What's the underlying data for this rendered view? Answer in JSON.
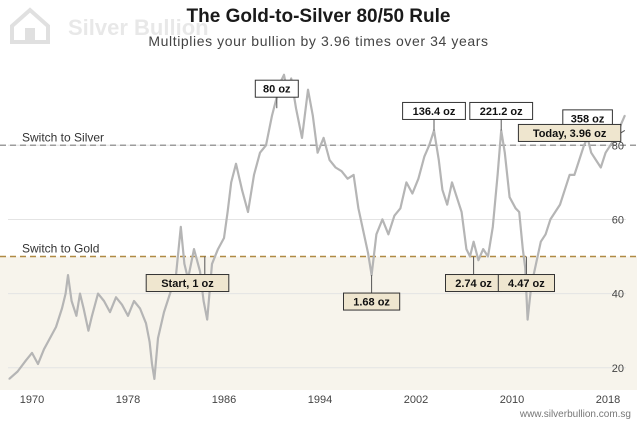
{
  "branding": {
    "logo_text": "Silver Bullion",
    "credit": "www.silverbullion.com.sg"
  },
  "chart_data": {
    "type": "line",
    "title": "The Gold-to-Silver 80/50 Rule",
    "subtitle": "Multiplies your bullion by 3.96 times over 34 years",
    "x_axis": {
      "ticks": [
        "1970",
        "1978",
        "1986",
        "1994",
        "2002",
        "2010",
        "2018"
      ],
      "range": [
        1968,
        2019.5
      ]
    },
    "y_axis": {
      "ticks": [
        "20",
        "40",
        "60",
        "80"
      ],
      "range": [
        14,
        103
      ]
    },
    "reference_lines": [
      {
        "label": "Switch to Silver",
        "value": 80,
        "style": "dashed",
        "color": "#9c9c9c"
      },
      {
        "label": "Switch to Gold",
        "value": 50,
        "style": "dashed",
        "color": "#b08a43"
      }
    ],
    "series": [
      {
        "color": "#b5b5b5",
        "points": [
          [
            1968.1,
            17
          ],
          [
            1968.8,
            19
          ],
          [
            1969.5,
            22
          ],
          [
            1970.0,
            24
          ],
          [
            1970.5,
            21
          ],
          [
            1971.0,
            25
          ],
          [
            1971.5,
            28
          ],
          [
            1972.0,
            31
          ],
          [
            1972.5,
            36
          ],
          [
            1972.8,
            40
          ],
          [
            1973.0,
            45
          ],
          [
            1973.3,
            38
          ],
          [
            1973.7,
            34
          ],
          [
            1974.0,
            40
          ],
          [
            1974.3,
            36
          ],
          [
            1974.7,
            30
          ],
          [
            1975.0,
            34
          ],
          [
            1975.5,
            40
          ],
          [
            1976.0,
            38
          ],
          [
            1976.5,
            35
          ],
          [
            1977.0,
            39
          ],
          [
            1977.5,
            37
          ],
          [
            1978.0,
            34
          ],
          [
            1978.5,
            38
          ],
          [
            1979.0,
            36
          ],
          [
            1979.5,
            32
          ],
          [
            1979.8,
            27
          ],
          [
            1980.0,
            21
          ],
          [
            1980.2,
            17
          ],
          [
            1980.5,
            28
          ],
          [
            1981.0,
            35
          ],
          [
            1981.5,
            40
          ],
          [
            1982.0,
            45
          ],
          [
            1982.4,
            58
          ],
          [
            1982.7,
            48
          ],
          [
            1983.0,
            44
          ],
          [
            1983.5,
            52
          ],
          [
            1984.0,
            46
          ],
          [
            1984.3,
            38
          ],
          [
            1984.6,
            33
          ],
          [
            1985.0,
            48
          ],
          [
            1985.5,
            52
          ],
          [
            1986.0,
            55
          ],
          [
            1986.3,
            62
          ],
          [
            1986.6,
            70
          ],
          [
            1987.0,
            75
          ],
          [
            1987.5,
            68
          ],
          [
            1988.0,
            62
          ],
          [
            1988.5,
            72
          ],
          [
            1989.0,
            78
          ],
          [
            1989.5,
            80
          ],
          [
            1990.0,
            88
          ],
          [
            1990.4,
            93
          ],
          [
            1990.7,
            97
          ],
          [
            1991.0,
            99
          ],
          [
            1991.3,
            94
          ],
          [
            1991.6,
            98
          ],
          [
            1992.0,
            90
          ],
          [
            1992.5,
            82
          ],
          [
            1993.0,
            95
          ],
          [
            1993.4,
            88
          ],
          [
            1993.8,
            78
          ],
          [
            1994.3,
            82
          ],
          [
            1994.8,
            76
          ],
          [
            1995.3,
            74
          ],
          [
            1995.8,
            73
          ],
          [
            1996.3,
            71
          ],
          [
            1996.8,
            72
          ],
          [
            1997.2,
            63
          ],
          [
            1997.6,
            57
          ],
          [
            1998.0,
            51
          ],
          [
            1998.3,
            45
          ],
          [
            1998.7,
            56
          ],
          [
            1999.2,
            60
          ],
          [
            1999.7,
            56
          ],
          [
            2000.2,
            61
          ],
          [
            2000.7,
            63
          ],
          [
            2001.2,
            70
          ],
          [
            2001.7,
            67
          ],
          [
            2002.2,
            71
          ],
          [
            2002.7,
            77
          ],
          [
            2003.1,
            80
          ],
          [
            2003.5,
            84
          ],
          [
            2003.9,
            76
          ],
          [
            2004.2,
            68
          ],
          [
            2004.6,
            64
          ],
          [
            2005.0,
            70
          ],
          [
            2005.4,
            66
          ],
          [
            2005.8,
            62
          ],
          [
            2006.2,
            52
          ],
          [
            2006.5,
            50
          ],
          [
            2006.8,
            54
          ],
          [
            2007.2,
            49
          ],
          [
            2007.6,
            52
          ],
          [
            2008.0,
            50
          ],
          [
            2008.4,
            58
          ],
          [
            2008.8,
            72
          ],
          [
            2009.1,
            84
          ],
          [
            2009.4,
            78
          ],
          [
            2009.8,
            66
          ],
          [
            2010.3,
            63
          ],
          [
            2010.6,
            62
          ],
          [
            2010.9,
            52
          ],
          [
            2011.1,
            47
          ],
          [
            2011.3,
            33
          ],
          [
            2011.6,
            42
          ],
          [
            2012.0,
            48
          ],
          [
            2012.4,
            54
          ],
          [
            2012.8,
            56
          ],
          [
            2013.2,
            60
          ],
          [
            2013.6,
            62
          ],
          [
            2014.0,
            64
          ],
          [
            2014.4,
            68
          ],
          [
            2014.8,
            72
          ],
          [
            2015.2,
            72
          ],
          [
            2015.6,
            76
          ],
          [
            2016.0,
            80
          ],
          [
            2016.3,
            82
          ],
          [
            2016.6,
            78
          ],
          [
            2017.0,
            76
          ],
          [
            2017.4,
            74
          ],
          [
            2017.8,
            78
          ],
          [
            2018.2,
            80
          ],
          [
            2018.6,
            82
          ],
          [
            2019.0,
            85
          ],
          [
            2019.4,
            88
          ]
        ]
      }
    ],
    "annotations": [
      {
        "label": "Start, 1 oz",
        "x": 1984.4,
        "y": 50,
        "style": "tan",
        "anchor": "below-left"
      },
      {
        "label": "80 oz",
        "x": 1990.4,
        "y": 90,
        "style": "white",
        "anchor": "above"
      },
      {
        "label": "1.68 oz",
        "x": 1998.3,
        "y": 45,
        "style": "tan",
        "anchor": "below"
      },
      {
        "label": "136.4 oz",
        "x": 2003.5,
        "y": 84,
        "style": "white",
        "anchor": "above"
      },
      {
        "label": "2.74 oz",
        "x": 2006.8,
        "y": 50,
        "style": "tan",
        "anchor": "below"
      },
      {
        "label": "221.2 oz",
        "x": 2009.1,
        "y": 84,
        "style": "white",
        "anchor": "above"
      },
      {
        "label": "4.47 oz",
        "x": 2011.2,
        "y": 50,
        "style": "tan",
        "anchor": "below"
      },
      {
        "label": "358 oz",
        "x": 2016.3,
        "y": 82,
        "style": "white",
        "anchor": "above"
      },
      {
        "label": "Today, 3.96 oz",
        "x": 2019.4,
        "y": 84,
        "style": "tan",
        "anchor": "left"
      }
    ],
    "grid": true,
    "legend": "none"
  }
}
